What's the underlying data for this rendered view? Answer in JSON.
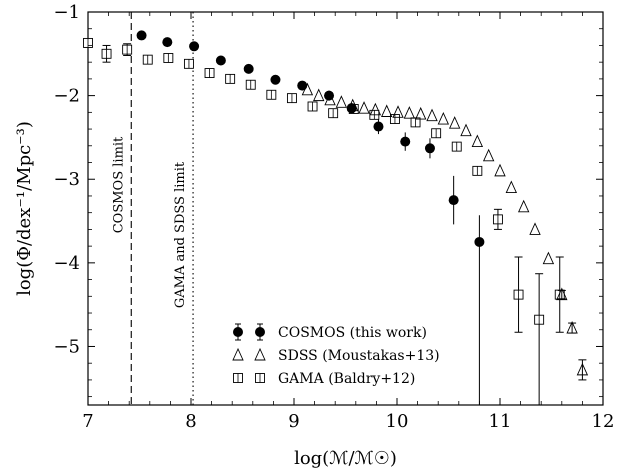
{
  "chart_data": {
    "type": "scatter",
    "xlabel": "log(ℳ/ℳ☉)",
    "ylabel": "log(Φ/dex⁻¹/Mpc⁻³)",
    "xlim": [
      7,
      12
    ],
    "ylim": [
      -5.7,
      -1.0
    ],
    "xticks": [
      7,
      8,
      9,
      10,
      11,
      12
    ],
    "yticks": [
      -1,
      -2,
      -3,
      -4,
      -5
    ],
    "xtick_labels": [
      "7",
      "8",
      "9",
      "10",
      "11",
      "12"
    ],
    "ytick_labels": [
      "−1",
      "−2",
      "−3",
      "−4",
      "−5"
    ],
    "vertical_lines": [
      {
        "x": 7.42,
        "style": "dashed",
        "label": "COSMOS limit"
      },
      {
        "x": 8.02,
        "style": "dotted",
        "label": "GAMA and SDSS limit"
      }
    ],
    "legend_position": "lower-left",
    "series": [
      {
        "name": "COSMOS (this work)",
        "marker": "filled-circle",
        "points": [
          {
            "x": 7.52,
            "y": -1.28,
            "err": 0.03
          },
          {
            "x": 7.77,
            "y": -1.36,
            "err": 0.03
          },
          {
            "x": 8.03,
            "y": -1.41,
            "err": 0.03
          },
          {
            "x": 8.29,
            "y": -1.58,
            "err": 0.03
          },
          {
            "x": 8.56,
            "y": -1.68,
            "err": 0.04
          },
          {
            "x": 8.82,
            "y": -1.81,
            "err": 0.04
          },
          {
            "x": 9.08,
            "y": -1.88,
            "err": 0.05
          },
          {
            "x": 9.34,
            "y": -2.0,
            "err": 0.06
          },
          {
            "x": 9.56,
            "y": -2.15,
            "err": 0.06
          },
          {
            "x": 9.82,
            "y": -2.37,
            "err": 0.09
          },
          {
            "x": 10.08,
            "y": -2.55,
            "err": 0.11
          },
          {
            "x": 10.32,
            "y": -2.63,
            "err": 0.12
          },
          {
            "x": 10.55,
            "y": -3.25,
            "err": 0.29
          },
          {
            "x": 10.8,
            "y": -3.75,
            "err_up": 0.32,
            "err_down": 2.0
          }
        ]
      },
      {
        "name": "SDSS (Moustakas+13)",
        "marker": "open-triangle",
        "points": [
          {
            "x": 9.13,
            "y": -1.93
          },
          {
            "x": 9.24,
            "y": -2.0
          },
          {
            "x": 9.35,
            "y": -2.05
          },
          {
            "x": 9.46,
            "y": -2.08
          },
          {
            "x": 9.57,
            "y": -2.12
          },
          {
            "x": 9.68,
            "y": -2.15
          },
          {
            "x": 9.79,
            "y": -2.17
          },
          {
            "x": 9.9,
            "y": -2.19
          },
          {
            "x": 10.01,
            "y": -2.2
          },
          {
            "x": 10.12,
            "y": -2.21
          },
          {
            "x": 10.23,
            "y": -2.22
          },
          {
            "x": 10.34,
            "y": -2.24
          },
          {
            "x": 10.45,
            "y": -2.28
          },
          {
            "x": 10.56,
            "y": -2.33
          },
          {
            "x": 10.67,
            "y": -2.42
          },
          {
            "x": 10.78,
            "y": -2.55
          },
          {
            "x": 10.89,
            "y": -2.72
          },
          {
            "x": 11.0,
            "y": -2.9
          },
          {
            "x": 11.11,
            "y": -3.1
          },
          {
            "x": 11.23,
            "y": -3.33
          },
          {
            "x": 11.34,
            "y": -3.6
          },
          {
            "x": 11.47,
            "y": -3.95
          },
          {
            "x": 11.6,
            "y": -4.38,
            "err": 0.05
          },
          {
            "x": 11.7,
            "y": -4.78,
            "err": 0.06
          },
          {
            "x": 11.8,
            "y": -5.28,
            "err": 0.12
          }
        ]
      },
      {
        "name": "GAMA (Baldry+12)",
        "marker": "open-square",
        "points": [
          {
            "x": 7.0,
            "y": -1.37,
            "err": 0.05
          },
          {
            "x": 7.18,
            "y": -1.5,
            "err": 0.1
          },
          {
            "x": 7.38,
            "y": -1.45,
            "err": 0.07
          },
          {
            "x": 7.58,
            "y": -1.57
          },
          {
            "x": 7.78,
            "y": -1.55
          },
          {
            "x": 7.98,
            "y": -1.62,
            "err": 0.04
          },
          {
            "x": 8.18,
            "y": -1.73
          },
          {
            "x": 8.38,
            "y": -1.8
          },
          {
            "x": 8.58,
            "y": -1.87
          },
          {
            "x": 8.78,
            "y": -1.99
          },
          {
            "x": 8.98,
            "y": -2.03
          },
          {
            "x": 9.18,
            "y": -2.13
          },
          {
            "x": 9.38,
            "y": -2.21
          },
          {
            "x": 9.58,
            "y": -2.16
          },
          {
            "x": 9.78,
            "y": -2.23
          },
          {
            "x": 9.98,
            "y": -2.28
          },
          {
            "x": 10.18,
            "y": -2.32
          },
          {
            "x": 10.38,
            "y": -2.45
          },
          {
            "x": 10.58,
            "y": -2.61
          },
          {
            "x": 10.78,
            "y": -2.9
          },
          {
            "x": 10.98,
            "y": -3.48,
            "err": 0.12
          },
          {
            "x": 11.18,
            "y": -4.38,
            "err": 0.45
          },
          {
            "x": 11.38,
            "y": -4.68,
            "err_up": 0.55,
            "err_down": 1.1
          },
          {
            "x": 11.58,
            "y": -4.38,
            "err": 0.45
          }
        ]
      }
    ]
  }
}
